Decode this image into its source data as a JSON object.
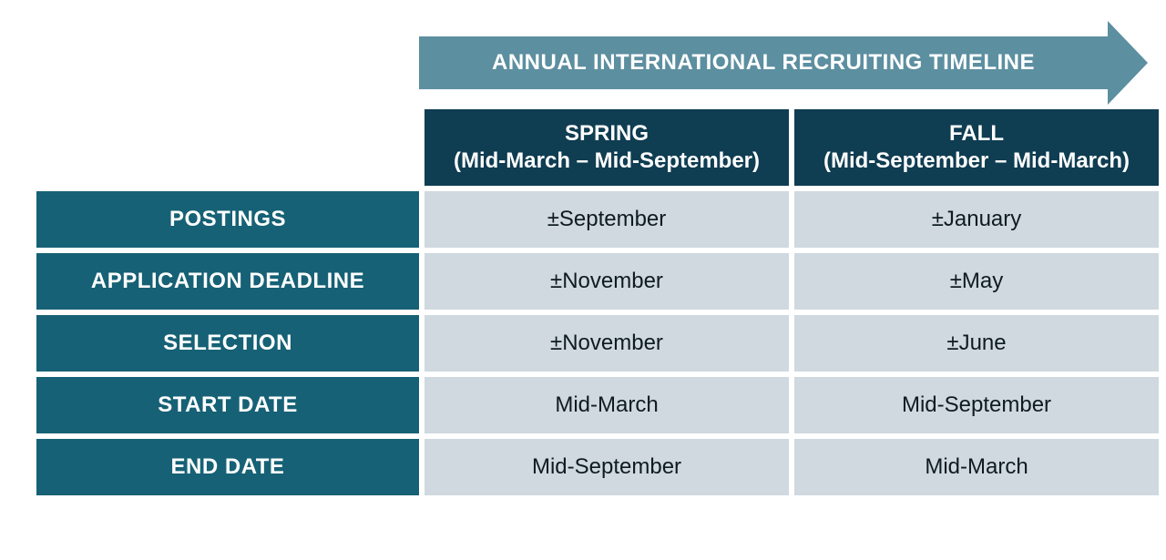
{
  "colors": {
    "arrow": "#5c8fa0",
    "col_header_bg": "#0f3d52",
    "row_header_bg": "#166175",
    "data_cell_bg": "#cfd9df",
    "data_text": "#0e1b1f",
    "white": "#ffffff"
  },
  "arrow": {
    "title": "ANNUAL INTERNATIONAL RECRUITING TIMELINE"
  },
  "table": {
    "columns": [
      {
        "title": "SPRING",
        "subtitle": "(Mid-March – Mid-September)"
      },
      {
        "title": "FALL",
        "subtitle": "(Mid-September – Mid-March)"
      }
    ],
    "rows": [
      {
        "label": "POSTINGS",
        "spring": "±September",
        "fall": "±January"
      },
      {
        "label": "APPLICATION DEADLINE",
        "spring": "±November",
        "fall": "±May"
      },
      {
        "label": "SELECTION",
        "spring": "±November",
        "fall": "±June"
      },
      {
        "label": "START DATE",
        "spring": "Mid-March",
        "fall": "Mid-September"
      },
      {
        "label": "END DATE",
        "spring": "Mid-September",
        "fall": "Mid-March"
      }
    ]
  }
}
